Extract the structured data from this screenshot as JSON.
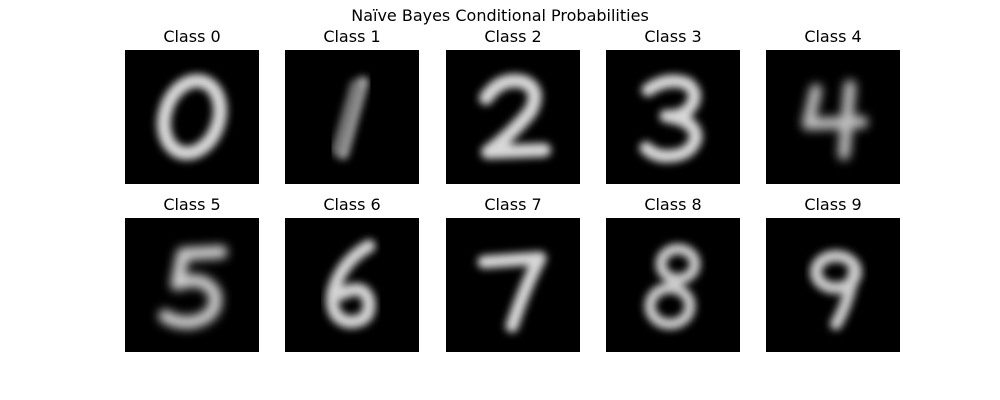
{
  "figure": {
    "title": "Naïve Bayes Conditional Probabilities",
    "background": "#ffffff",
    "image_background": "#000000",
    "colormap": "gray"
  },
  "panels": [
    {
      "title": "Class 0",
      "digit": "0"
    },
    {
      "title": "Class 1",
      "digit": "1"
    },
    {
      "title": "Class 2",
      "digit": "2"
    },
    {
      "title": "Class 3",
      "digit": "3"
    },
    {
      "title": "Class 4",
      "digit": "4"
    },
    {
      "title": "Class 5",
      "digit": "5"
    },
    {
      "title": "Class 6",
      "digit": "6"
    },
    {
      "title": "Class 7",
      "digit": "7"
    },
    {
      "title": "Class 8",
      "digit": "8"
    },
    {
      "title": "Class 9",
      "digit": "9"
    }
  ]
}
